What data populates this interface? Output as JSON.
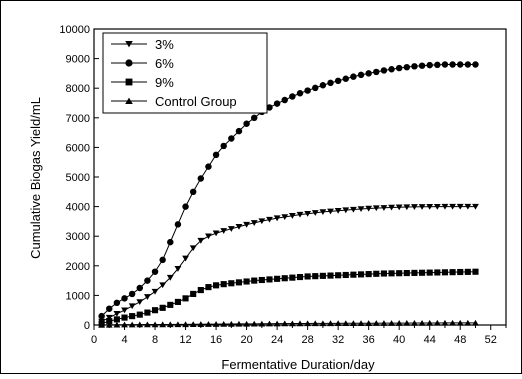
{
  "chart_data": {
    "type": "line",
    "xlabel": "Fermentative Duration/day",
    "ylabel": "Cumulative Biogas Yield/mL",
    "xlim": [
      0,
      54
    ],
    "ylim": [
      0,
      10000
    ],
    "xticks": [
      0,
      4,
      8,
      12,
      16,
      20,
      24,
      28,
      32,
      36,
      40,
      44,
      48,
      52
    ],
    "yticks": [
      0,
      1000,
      2000,
      3000,
      4000,
      5000,
      6000,
      7000,
      8000,
      9000,
      10000
    ],
    "x_minor_step": 2,
    "grid": false,
    "legend_position": "top-left",
    "series": [
      {
        "name": "3%",
        "marker": "triangle-down",
        "color": "#000000",
        "x": [
          1,
          2,
          3,
          4,
          5,
          6,
          7,
          8,
          9,
          10,
          11,
          12,
          13,
          14,
          15,
          16,
          17,
          18,
          19,
          20,
          21,
          22,
          23,
          24,
          25,
          26,
          27,
          28,
          29,
          30,
          31,
          32,
          33,
          34,
          35,
          36,
          37,
          38,
          39,
          40,
          41,
          42,
          43,
          44,
          45,
          46,
          47,
          48,
          49,
          50
        ],
        "y": [
          120,
          250,
          380,
          500,
          640,
          780,
          950,
          1130,
          1350,
          1600,
          1900,
          2250,
          2600,
          2850,
          3000,
          3100,
          3180,
          3250,
          3320,
          3390,
          3450,
          3510,
          3560,
          3610,
          3650,
          3690,
          3730,
          3760,
          3790,
          3820,
          3840,
          3860,
          3880,
          3900,
          3920,
          3935,
          3950,
          3960,
          3970,
          3980,
          3985,
          3990,
          3993,
          3996,
          3998,
          4000,
          4000,
          4000,
          4000,
          4000
        ]
      },
      {
        "name": "6%",
        "marker": "circle",
        "color": "#000000",
        "x": [
          1,
          2,
          3,
          4,
          5,
          6,
          7,
          8,
          9,
          10,
          11,
          12,
          13,
          14,
          15,
          16,
          17,
          18,
          19,
          20,
          21,
          22,
          23,
          24,
          25,
          26,
          27,
          28,
          29,
          30,
          31,
          32,
          33,
          34,
          35,
          36,
          37,
          38,
          39,
          40,
          41,
          42,
          43,
          44,
          45,
          46,
          47,
          48,
          49,
          50
        ],
        "y": [
          300,
          550,
          750,
          900,
          1050,
          1250,
          1500,
          1800,
          2200,
          2800,
          3400,
          4000,
          4500,
          4950,
          5350,
          5750,
          6050,
          6300,
          6550,
          6800,
          7000,
          7200,
          7350,
          7480,
          7600,
          7720,
          7830,
          7920,
          8010,
          8100,
          8180,
          8250,
          8320,
          8390,
          8450,
          8500,
          8550,
          8600,
          8640,
          8680,
          8710,
          8740,
          8760,
          8780,
          8790,
          8800,
          8800,
          8800,
          8800,
          8800
        ]
      },
      {
        "name": "9%",
        "marker": "square",
        "color": "#000000",
        "x": [
          1,
          2,
          3,
          4,
          5,
          6,
          7,
          8,
          9,
          10,
          11,
          12,
          13,
          14,
          15,
          16,
          17,
          18,
          19,
          20,
          21,
          22,
          23,
          24,
          25,
          26,
          27,
          28,
          29,
          30,
          31,
          32,
          33,
          34,
          35,
          36,
          37,
          38,
          39,
          40,
          41,
          42,
          43,
          44,
          45,
          46,
          47,
          48,
          49,
          50
        ],
        "y": [
          50,
          130,
          190,
          250,
          300,
          350,
          420,
          500,
          580,
          680,
          780,
          900,
          1050,
          1180,
          1280,
          1340,
          1380,
          1410,
          1440,
          1470,
          1500,
          1520,
          1540,
          1560,
          1580,
          1600,
          1620,
          1640,
          1650,
          1660,
          1670,
          1680,
          1690,
          1700,
          1710,
          1720,
          1730,
          1740,
          1745,
          1750,
          1755,
          1760,
          1765,
          1770,
          1775,
          1780,
          1785,
          1790,
          1795,
          1800
        ]
      },
      {
        "name": "Control Group",
        "marker": "triangle-up",
        "color": "#000000",
        "x": [
          1,
          2,
          3,
          4,
          5,
          6,
          7,
          8,
          9,
          10,
          11,
          12,
          13,
          14,
          15,
          16,
          17,
          18,
          19,
          20,
          21,
          22,
          23,
          24,
          25,
          26,
          27,
          28,
          29,
          30,
          31,
          32,
          33,
          34,
          35,
          36,
          37,
          38,
          39,
          40,
          41,
          42,
          43,
          44,
          45,
          46,
          47,
          48,
          49,
          50
        ],
        "y": [
          0,
          5,
          8,
          10,
          12,
          14,
          15,
          16,
          17,
          18,
          20,
          22,
          24,
          26,
          28,
          30,
          32,
          34,
          36,
          38,
          40,
          42,
          44,
          46,
          48,
          50,
          51,
          52,
          53,
          54,
          55,
          56,
          57,
          58,
          59,
          60,
          61,
          62,
          63,
          64,
          65,
          66,
          67,
          68,
          69,
          70,
          70,
          70,
          70,
          70
        ]
      }
    ]
  }
}
